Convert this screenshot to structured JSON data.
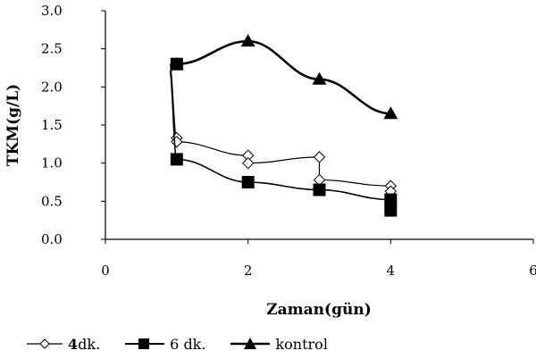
{
  "chart_data": {
    "type": "line",
    "xlabel": "Zaman(gün)",
    "ylabel": "TKM(g/L)",
    "xlim": [
      0,
      6
    ],
    "ylim": [
      0.0,
      3.0
    ],
    "x_ticks": [
      "0",
      "2",
      "4",
      "6"
    ],
    "y_ticks": [
      "0.0",
      "0.5",
      "1.0",
      "1.5",
      "2.0",
      "2.5",
      "3.0"
    ],
    "grid": false,
    "legend_position": "bottom",
    "series": [
      {
        "name": "4 dk.",
        "marker": "diamond-open",
        "points": [
          [
            0.9,
            2.3
          ],
          [
            1.0,
            1.33
          ],
          [
            1.0,
            1.28
          ],
          [
            2.0,
            1.1
          ],
          [
            2.0,
            1.0
          ],
          [
            3.0,
            1.08
          ],
          [
            3.0,
            0.78
          ],
          [
            4.0,
            0.7
          ],
          [
            4.0,
            0.63
          ]
        ]
      },
      {
        "name": "6 dk.",
        "marker": "square-filled",
        "points": [
          [
            1.0,
            2.3
          ],
          [
            0.9,
            2.2
          ],
          [
            1.0,
            1.05
          ],
          [
            2.0,
            0.75
          ],
          [
            3.0,
            0.65
          ],
          [
            4.0,
            0.52
          ],
          [
            4.0,
            0.38
          ]
        ]
      },
      {
        "name": "kontrol",
        "marker": "triangle-filled",
        "points": [
          [
            1.0,
            2.3
          ],
          [
            2.0,
            2.6
          ],
          [
            3.0,
            2.1
          ],
          [
            4.0,
            1.65
          ]
        ]
      }
    ]
  },
  "legend": [
    {
      "bold": "4",
      "text": " dk."
    },
    {
      "bold": "",
      "text": "6 dk."
    },
    {
      "bold": "",
      "text": "kontrol"
    }
  ]
}
